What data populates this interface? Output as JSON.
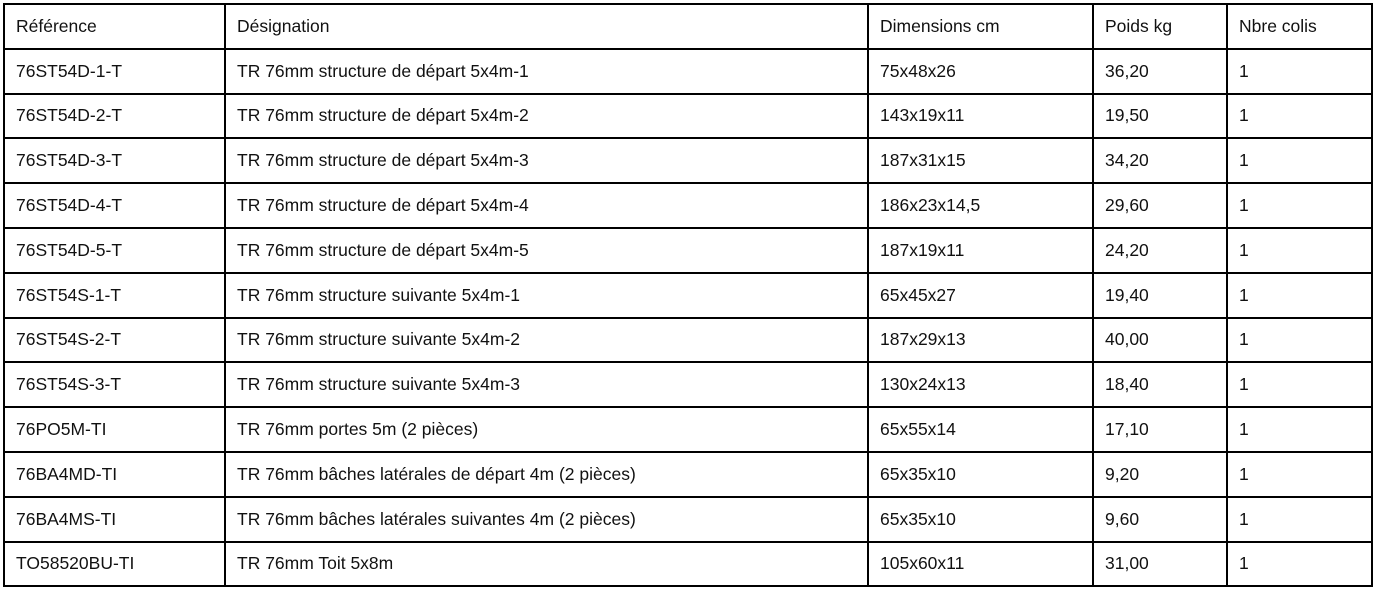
{
  "headers": [
    "Référence",
    "Désignation",
    "Dimensions cm",
    "Poids kg",
    "Nbre colis"
  ],
  "rows": [
    [
      "76ST54D-1-T",
      "TR 76mm structure de départ 5x4m-1",
      "75x48x26",
      "36,20",
      "1"
    ],
    [
      "76ST54D-2-T",
      "TR 76mm structure de départ 5x4m-2",
      "143x19x11",
      "19,50",
      "1"
    ],
    [
      "76ST54D-3-T",
      "TR 76mm structure de départ 5x4m-3",
      "187x31x15",
      "34,20",
      "1"
    ],
    [
      "76ST54D-4-T",
      "TR 76mm structure de départ 5x4m-4",
      "186x23x14,5",
      "29,60",
      "1"
    ],
    [
      "76ST54D-5-T",
      "TR 76mm structure de départ 5x4m-5",
      "187x19x11",
      "24,20",
      "1"
    ],
    [
      "76ST54S-1-T",
      "TR 76mm structure suivante 5x4m-1",
      "65x45x27",
      "19,40",
      "1"
    ],
    [
      "76ST54S-2-T",
      "TR 76mm structure suivante 5x4m-2",
      "187x29x13",
      "40,00",
      "1"
    ],
    [
      "76ST54S-3-T",
      "TR 76mm structure suivante 5x4m-3",
      "130x24x13",
      "18,40",
      "1"
    ],
    [
      "76PO5M-TI",
      "TR 76mm portes 5m (2 pièces)",
      "65x55x14",
      "17,10",
      "1"
    ],
    [
      "76BA4MD-TI",
      "TR 76mm bâches latérales de départ 4m (2 pièces)",
      "65x35x10",
      "9,20",
      "1"
    ],
    [
      "76BA4MS-TI",
      "TR 76mm bâches latérales suivantes 4m (2 pièces)",
      "65x35x10",
      "9,60",
      "1"
    ],
    [
      "TO58520BU-TI",
      "TR 76mm Toit 5x8m",
      "105x60x11",
      "31,00",
      "1"
    ]
  ]
}
